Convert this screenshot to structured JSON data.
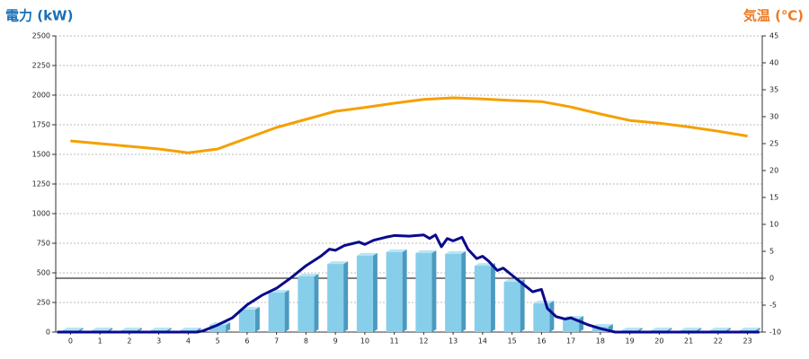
{
  "chart_data": {
    "type": "bar",
    "y_label": "電力 (kW)",
    "y2_label": "気温 (℃)",
    "categories": [
      "0",
      "1",
      "2",
      "3",
      "4",
      "5",
      "6",
      "7",
      "8",
      "9",
      "10",
      "11",
      "12",
      "13",
      "14",
      "15",
      "16",
      "17",
      "18",
      "19",
      "20",
      "21",
      "22",
      "23"
    ],
    "ylim": [
      0,
      2500
    ],
    "yticks": [
      0,
      250,
      500,
      750,
      1000,
      1250,
      1500,
      1750,
      2000,
      2250,
      2500
    ],
    "y2lim": [
      -10,
      45
    ],
    "y2ticks": [
      -10,
      -5,
      0,
      5,
      10,
      15,
      20,
      25,
      30,
      35,
      40,
      45
    ],
    "xlim": [
      -0.5,
      23.5
    ],
    "grid": true,
    "zero_line_y2": true,
    "series": [
      {
        "type": "bar",
        "color": "#87ceeb",
        "side_color": "#4a9ac0",
        "values": [
          15,
          15,
          15,
          15,
          15,
          60,
          190,
          333,
          470,
          575,
          645,
          675,
          667,
          660,
          560,
          424,
          242,
          114,
          45,
          15,
          15,
          15,
          15,
          15
        ]
      },
      {
        "type": "line",
        "color": "#0a0a8c",
        "x": [
          -0.45,
          4.3,
          4.5,
          5,
          5.5,
          6,
          6.5,
          7,
          7.5,
          8,
          8.5,
          8.8,
          9,
          9.3,
          9.8,
          10,
          10.3,
          10.7,
          11,
          11.5,
          12,
          12.2,
          12.4,
          12.6,
          12.8,
          13,
          13.3,
          13.5,
          13.8,
          14,
          14.2,
          14.5,
          14.7,
          15,
          15.3,
          15.5,
          15.7,
          16,
          16.2,
          16.5,
          16.8,
          17,
          17.3,
          17.6,
          18,
          18.5,
          23.4
        ],
        "values": [
          0,
          0,
          10,
          60,
          120,
          230,
          310,
          370,
          460,
          560,
          640,
          700,
          690,
          730,
          760,
          740,
          775,
          800,
          815,
          810,
          820,
          790,
          820,
          720,
          790,
          770,
          800,
          700,
          620,
          640,
          600,
          520,
          540,
          480,
          420,
          380,
          340,
          360,
          200,
          130,
          110,
          120,
          90,
          60,
          30,
          0,
          0
        ]
      },
      {
        "type": "line",
        "axis": "y2",
        "color": "#f5a000",
        "values": [
          25.5,
          25,
          24.5,
          24,
          23.3,
          24,
          26,
          28,
          29.5,
          31,
          31.7,
          32.5,
          33.2,
          33.5,
          33.3,
          33,
          32.8,
          31.8,
          30.5,
          29.3,
          28.8,
          28.1,
          27.3,
          26.4
        ]
      }
    ]
  }
}
